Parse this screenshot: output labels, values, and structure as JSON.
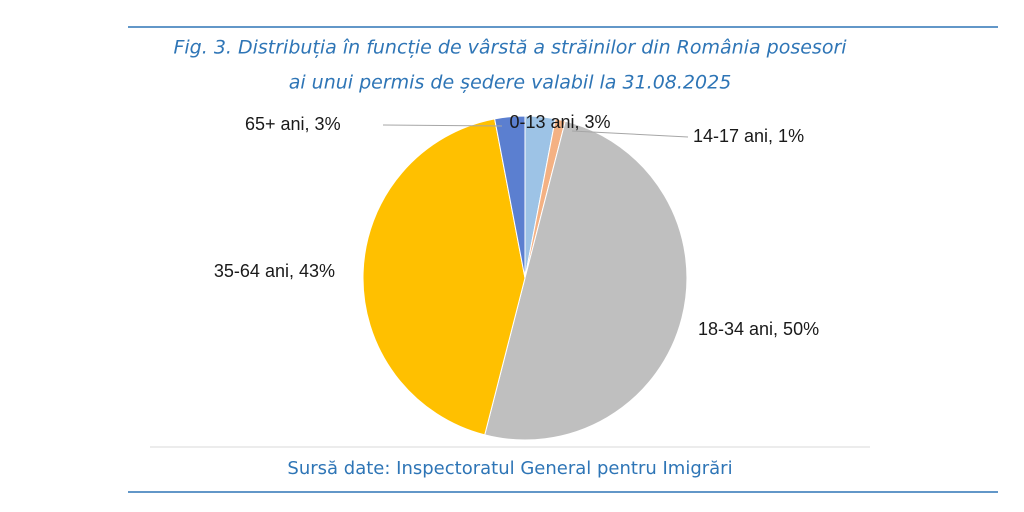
{
  "chart_data": {
    "type": "pie",
    "title": "Fig. 3. Distribuția în funcție de vârstă a străinilor din România posesori",
    "subtitle": "ai unui permis de ședere valabil la 31.08.2025",
    "values": [
      3,
      1,
      50,
      43,
      3
    ],
    "value_labels": [
      "0-13 ani, 3%",
      "14-17 ani, 1%",
      "18-34 ani, 50%",
      "35-64 ani, 43%",
      "65+ ani, 3%"
    ],
    "colors": [
      "#9dc3e6",
      "#f4b183",
      "#bfbfbf",
      "#ffc000",
      "#5b7fd0"
    ],
    "source": "Sursă date: Inspectoratul General pentru Imigrări"
  }
}
